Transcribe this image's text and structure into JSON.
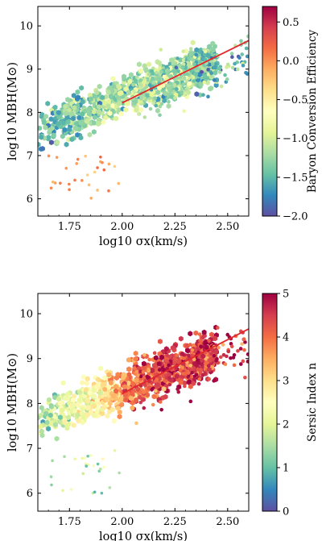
{
  "chart_data": [
    {
      "type": "scatter",
      "variant": "hexbin",
      "xlabel": "log10 σx(km/s)",
      "ylabel": "log10 MBH(M⊙)",
      "xlim": [
        1.6,
        2.6
      ],
      "ylim": [
        5.6,
        10.45
      ],
      "xticks": [
        "1.75",
        "2.00",
        "2.25",
        "2.50"
      ],
      "yticks": [
        "6",
        "7",
        "8",
        "9",
        "10"
      ],
      "fit_line": {
        "color": "#e3262a",
        "x": [
          2.0,
          2.6
        ],
        "y": [
          8.22,
          9.66
        ]
      },
      "colorbar": {
        "label": "Baryon Conversion Efficiency",
        "cmap": "Spectral_r",
        "range": [
          -2.0,
          0.7
        ],
        "ticks": [
          "0.5",
          "0.0",
          "−0.5",
          "−1.0",
          "−1.5",
          "−2.0"
        ]
      },
      "color_trend": {
        "x": [
          1.6,
          2.1,
          2.6
        ],
        "c": [
          -1.45,
          -1.1,
          -1.55
        ]
      },
      "seed": 11
    },
    {
      "type": "scatter",
      "variant": "hexbin",
      "xlabel": "log10 σx(km/s)",
      "ylabel": "log10 MBH(M⊙)",
      "xlim": [
        1.6,
        2.6
      ],
      "ylim": [
        5.6,
        10.45
      ],
      "xticks": [
        "1.75",
        "2.00",
        "2.25",
        "2.50"
      ],
      "yticks": [
        "6",
        "7",
        "8",
        "9",
        "10"
      ],
      "fit_line": {
        "color": "#e3262a",
        "x": [
          2.0,
          2.6
        ],
        "y": [
          8.22,
          9.66
        ]
      },
      "colorbar": {
        "label": "Sersic Index n",
        "cmap": "Spectral_r",
        "range": [
          0,
          5
        ],
        "ticks": [
          "5",
          "4",
          "3",
          "2",
          "1",
          "0"
        ]
      },
      "color_trend": {
        "x": [
          1.6,
          1.85,
          2.1,
          2.6
        ],
        "c": [
          1.6,
          2.4,
          4.3,
          4.6
        ]
      },
      "seed": 23
    }
  ]
}
